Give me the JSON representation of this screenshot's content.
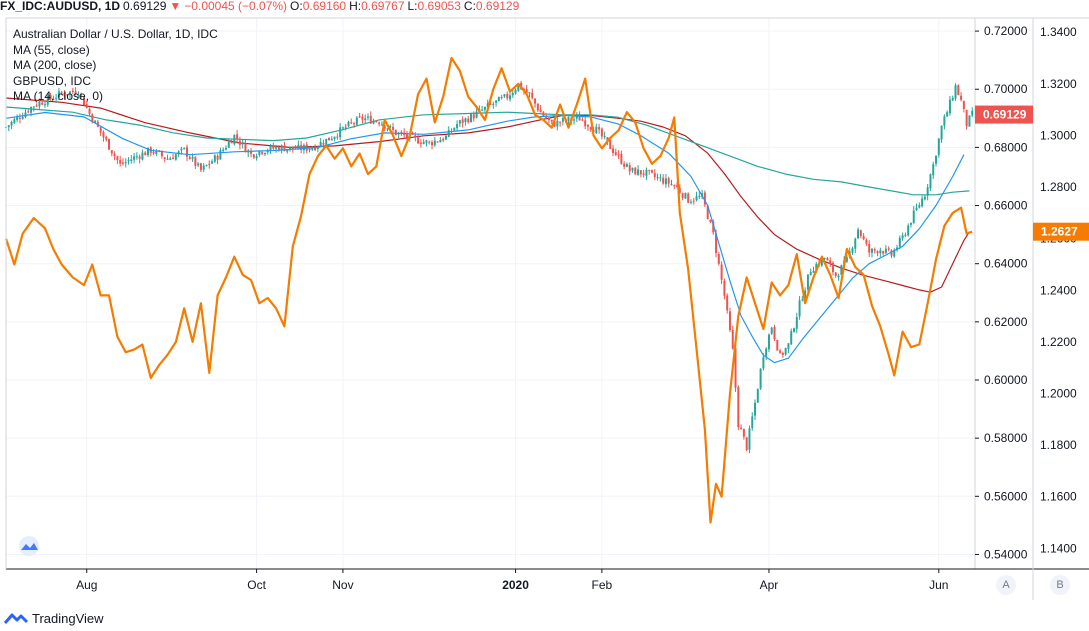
{
  "header": {
    "symbol": "FX_IDC:AUDUSD, 1D",
    "last": "0.69129",
    "arrow": "▼",
    "change": "−0.00045 (−0.07%)",
    "o_label": "O:",
    "o": "0.69160",
    "h_label": "H:",
    "h": "0.69767",
    "l_label": "L:",
    "l": "0.69053",
    "c_label": "C:",
    "c": "0.69129"
  },
  "legend": [
    "Australian Dollar / U.S. Dollar, 1D, IDC",
    "MA (55, close)",
    "MA (200, close)",
    "GBPUSD, IDC",
    "MA (14, close, 0)"
  ],
  "badges": {
    "main": "0.69129",
    "gbp": "1.2627"
  },
  "scale_buttons": {
    "a": "A",
    "b": "B"
  },
  "footer": {
    "brand": "TradingView"
  },
  "colors": {
    "up": "#26a69a",
    "down": "#ef5350",
    "ma55": "#2196f3",
    "ma200": "#b71c1c",
    "gbp": "#f57c00",
    "ma14": "#26a69a",
    "grid": "#f0f3fa"
  },
  "chart_data": {
    "type": "candlestick-overlay",
    "right_axis_ticks": [
      "0.72000",
      "0.70000",
      "0.68000",
      "0.66000",
      "0.64000",
      "0.62000",
      "0.60000",
      "0.58000",
      "0.56000",
      "0.54000"
    ],
    "secondary_axis_ticks": [
      "1.3400",
      "1.3200",
      "1.3000",
      "1.2800",
      "1.2600",
      "1.2400",
      "1.2200",
      "1.2000",
      "1.1800",
      "1.1600",
      "1.1400"
    ],
    "x_ticks": [
      "Aug",
      "Oct",
      "Nov",
      "2020",
      "Feb",
      "Apr",
      "Jun"
    ],
    "x_tick_pos_days": [
      29,
      90,
      121,
      183,
      214,
      274,
      335
    ],
    "audusd_ylim": [
      0.535,
      0.7245
    ],
    "gbpusd_ylim": [
      1.132,
      1.3455
    ],
    "audusd_close": [
      [
        0,
        0.687
      ],
      [
        10,
        0.6945
      ],
      [
        20,
        0.6985
      ],
      [
        26,
        0.6995
      ],
      [
        30,
        0.6915
      ],
      [
        36,
        0.682
      ],
      [
        41,
        0.674
      ],
      [
        46,
        0.6765
      ],
      [
        52,
        0.679
      ],
      [
        58,
        0.676
      ],
      [
        64,
        0.679
      ],
      [
        70,
        0.672
      ],
      [
        76,
        0.677
      ],
      [
        82,
        0.684
      ],
      [
        88,
        0.6775
      ],
      [
        92,
        0.679
      ],
      [
        98,
        0.68
      ],
      [
        104,
        0.6795
      ],
      [
        110,
        0.68
      ],
      [
        116,
        0.683
      ],
      [
        122,
        0.687
      ],
      [
        128,
        0.69
      ],
      [
        134,
        0.689
      ],
      [
        140,
        0.685
      ],
      [
        146,
        0.683
      ],
      [
        152,
        0.6815
      ],
      [
        158,
        0.6835
      ],
      [
        162,
        0.688
      ],
      [
        168,
        0.691
      ],
      [
        174,
        0.6945
      ],
      [
        180,
        0.6975
      ],
      [
        184,
        0.7015
      ],
      [
        188,
        0.698
      ],
      [
        192,
        0.692
      ],
      [
        196,
        0.688
      ],
      [
        200,
        0.689
      ],
      [
        206,
        0.69
      ],
      [
        212,
        0.686
      ],
      [
        218,
        0.679
      ],
      [
        224,
        0.672
      ],
      [
        230,
        0.671
      ],
      [
        235,
        0.669
      ],
      [
        240,
        0.667
      ],
      [
        245,
        0.662
      ],
      [
        250,
        0.663
      ],
      [
        254,
        0.65
      ],
      [
        258,
        0.629
      ],
      [
        261,
        0.61
      ],
      [
        263,
        0.585
      ],
      [
        266,
        0.577
      ],
      [
        269,
        0.592
      ],
      [
        272,
        0.609
      ],
      [
        275,
        0.6185
      ],
      [
        278,
        0.608
      ],
      [
        281,
        0.612
      ],
      [
        285,
        0.626
      ],
      [
        289,
        0.638
      ],
      [
        294,
        0.642
      ],
      [
        298,
        0.636
      ],
      [
        302,
        0.641
      ],
      [
        306,
        0.652
      ],
      [
        310,
        0.644
      ],
      [
        314,
        0.645
      ],
      [
        318,
        0.643
      ],
      [
        322,
        0.649
      ],
      [
        326,
        0.657
      ],
      [
        330,
        0.664
      ],
      [
        333,
        0.674
      ],
      [
        336,
        0.687
      ],
      [
        339,
        0.695
      ],
      [
        341,
        0.701
      ],
      [
        343,
        0.696
      ],
      [
        345,
        0.688
      ],
      [
        347,
        0.6913
      ]
    ],
    "audusd_ma55": [
      [
        0,
        0.69
      ],
      [
        14,
        0.692
      ],
      [
        28,
        0.6905
      ],
      [
        42,
        0.683
      ],
      [
        52,
        0.679
      ],
      [
        66,
        0.6775
      ],
      [
        82,
        0.6785
      ],
      [
        98,
        0.679
      ],
      [
        112,
        0.68
      ],
      [
        124,
        0.683
      ],
      [
        136,
        0.685
      ],
      [
        150,
        0.6845
      ],
      [
        166,
        0.686
      ],
      [
        180,
        0.689
      ],
      [
        190,
        0.6905
      ],
      [
        200,
        0.691
      ],
      [
        210,
        0.6905
      ],
      [
        220,
        0.688
      ],
      [
        228,
        0.684
      ],
      [
        238,
        0.678
      ],
      [
        246,
        0.67
      ],
      [
        252,
        0.66
      ],
      [
        256,
        0.647
      ],
      [
        260,
        0.634
      ],
      [
        264,
        0.622
      ],
      [
        268,
        0.615
      ],
      [
        272,
        0.6085
      ],
      [
        276,
        0.606
      ],
      [
        281,
        0.6075
      ],
      [
        286,
        0.614
      ],
      [
        292,
        0.621
      ],
      [
        298,
        0.628
      ],
      [
        304,
        0.635
      ],
      [
        310,
        0.64
      ],
      [
        316,
        0.643
      ],
      [
        322,
        0.646
      ],
      [
        328,
        0.652
      ],
      [
        334,
        0.66
      ],
      [
        340,
        0.67
      ],
      [
        344,
        0.6775
      ]
    ],
    "audusd_ma200": [
      [
        0,
        0.697
      ],
      [
        20,
        0.6955
      ],
      [
        34,
        0.6935
      ],
      [
        50,
        0.6885
      ],
      [
        66,
        0.685
      ],
      [
        84,
        0.6815
      ],
      [
        102,
        0.68
      ],
      [
        118,
        0.6805
      ],
      [
        134,
        0.682
      ],
      [
        150,
        0.684
      ],
      [
        166,
        0.685
      ],
      [
        180,
        0.687
      ],
      [
        192,
        0.6895
      ],
      [
        200,
        0.691
      ],
      [
        210,
        0.691
      ],
      [
        220,
        0.69
      ],
      [
        228,
        0.689
      ],
      [
        236,
        0.687
      ],
      [
        244,
        0.684
      ],
      [
        252,
        0.678
      ],
      [
        258,
        0.671
      ],
      [
        264,
        0.663
      ],
      [
        270,
        0.656
      ],
      [
        276,
        0.65
      ],
      [
        284,
        0.645
      ],
      [
        292,
        0.6415
      ],
      [
        300,
        0.6385
      ],
      [
        308,
        0.636
      ],
      [
        316,
        0.634
      ],
      [
        322,
        0.6325
      ],
      [
        328,
        0.631
      ],
      [
        332,
        0.6302
      ],
      [
        336,
        0.632
      ],
      [
        340,
        0.64
      ],
      [
        344,
        0.648
      ],
      [
        346,
        0.651
      ]
    ],
    "gbpusd_close": [
      [
        0,
        1.26
      ],
      [
        3,
        1.25
      ],
      [
        6,
        1.262
      ],
      [
        10,
        1.268
      ],
      [
        14,
        1.264
      ],
      [
        17,
        1.256
      ],
      [
        20,
        1.25
      ],
      [
        24,
        1.245
      ],
      [
        28,
        1.242
      ],
      [
        31,
        1.25
      ],
      [
        34,
        1.238
      ],
      [
        37,
        1.238
      ],
      [
        40,
        1.222
      ],
      [
        43,
        1.216
      ],
      [
        46,
        1.217
      ],
      [
        49,
        1.219
      ],
      [
        52,
        1.206
      ],
      [
        55,
        1.211
      ],
      [
        58,
        1.215
      ],
      [
        61,
        1.22
      ],
      [
        64,
        1.233
      ],
      [
        67,
        1.22
      ],
      [
        70,
        1.235
      ],
      [
        73,
        1.208
      ],
      [
        76,
        1.238
      ],
      [
        79,
        1.245
      ],
      [
        82,
        1.253
      ],
      [
        85,
        1.246
      ],
      [
        88,
        1.244
      ],
      [
        91,
        1.235
      ],
      [
        94,
        1.237
      ],
      [
        97,
        1.233
      ],
      [
        100,
        1.226
      ],
      [
        103,
        1.257
      ],
      [
        106,
        1.269
      ],
      [
        109,
        1.285
      ],
      [
        112,
        1.292
      ],
      [
        115,
        1.296
      ],
      [
        118,
        1.291
      ],
      [
        121,
        1.295
      ],
      [
        124,
        1.288
      ],
      [
        127,
        1.293
      ],
      [
        130,
        1.285
      ],
      [
        133,
        1.288
      ],
      [
        136,
        1.306
      ],
      [
        139,
        1.3
      ],
      [
        142,
        1.292
      ],
      [
        145,
        1.3
      ],
      [
        148,
        1.316
      ],
      [
        151,
        1.322
      ],
      [
        154,
        1.305
      ],
      [
        157,
        1.315
      ],
      [
        160,
        1.33
      ],
      [
        163,
        1.325
      ],
      [
        166,
        1.315
      ],
      [
        169,
        1.311
      ],
      [
        172,
        1.306
      ],
      [
        175,
        1.318
      ],
      [
        178,
        1.326
      ],
      [
        181,
        1.317
      ],
      [
        184,
        1.32
      ],
      [
        187,
        1.316
      ],
      [
        190,
        1.308
      ],
      [
        193,
        1.306
      ],
      [
        196,
        1.303
      ],
      [
        199,
        1.312
      ],
      [
        202,
        1.303
      ],
      [
        205,
        1.312
      ],
      [
        208,
        1.322
      ],
      [
        211,
        1.3
      ],
      [
        214,
        1.295
      ],
      [
        217,
        1.299
      ],
      [
        220,
        1.302
      ],
      [
        223,
        1.309
      ],
      [
        226,
        1.305
      ],
      [
        229,
        1.295
      ],
      [
        232,
        1.289
      ],
      [
        235,
        1.292
      ],
      [
        238,
        1.299
      ],
      [
        240,
        1.307
      ],
      [
        242,
        1.27
      ],
      [
        245,
        1.248
      ],
      [
        248,
        1.217
      ],
      [
        251,
        1.186
      ],
      [
        253,
        1.15
      ],
      [
        255,
        1.165
      ],
      [
        257,
        1.16
      ],
      [
        260,
        1.2
      ],
      [
        263,
        1.23
      ],
      [
        266,
        1.245
      ],
      [
        269,
        1.235
      ],
      [
        272,
        1.225
      ],
      [
        275,
        1.243
      ],
      [
        278,
        1.238
      ],
      [
        281,
        1.242
      ],
      [
        284,
        1.254
      ],
      [
        287,
        1.235
      ],
      [
        290,
        1.245
      ],
      [
        293,
        1.253
      ],
      [
        296,
        1.246
      ],
      [
        299,
        1.237
      ],
      [
        302,
        1.256
      ],
      [
        305,
        1.249
      ],
      [
        308,
        1.246
      ],
      [
        311,
        1.234
      ],
      [
        314,
        1.226
      ],
      [
        317,
        1.215
      ],
      [
        319,
        1.207
      ],
      [
        322,
        1.224
      ],
      [
        325,
        1.218
      ],
      [
        328,
        1.219
      ],
      [
        331,
        1.235
      ],
      [
        334,
        1.252
      ],
      [
        337,
        1.265
      ],
      [
        340,
        1.27
      ],
      [
        343,
        1.272
      ],
      [
        345,
        1.262
      ],
      [
        347,
        1.2627
      ]
    ],
    "gbpusd_ma14": [
      [
        0,
        1.311
      ],
      [
        12,
        1.31
      ],
      [
        24,
        1.309
      ],
      [
        36,
        1.306
      ],
      [
        48,
        1.304
      ],
      [
        60,
        1.301
      ],
      [
        72,
        1.299
      ],
      [
        84,
        1.2985
      ],
      [
        96,
        1.298
      ],
      [
        108,
        1.299
      ],
      [
        120,
        1.302
      ],
      [
        134,
        1.306
      ],
      [
        150,
        1.308
      ],
      [
        166,
        1.3085
      ],
      [
        180,
        1.309
      ],
      [
        190,
        1.3085
      ],
      [
        200,
        1.308
      ],
      [
        210,
        1.308
      ],
      [
        220,
        1.307
      ],
      [
        230,
        1.304
      ],
      [
        240,
        1.3
      ],
      [
        250,
        1.296
      ],
      [
        260,
        1.292
      ],
      [
        270,
        1.288
      ],
      [
        280,
        1.285
      ],
      [
        290,
        1.283
      ],
      [
        300,
        1.282
      ],
      [
        310,
        1.28
      ],
      [
        318,
        1.2785
      ],
      [
        326,
        1.277
      ],
      [
        334,
        1.277
      ],
      [
        340,
        1.278
      ],
      [
        346,
        1.2785
      ]
    ]
  }
}
